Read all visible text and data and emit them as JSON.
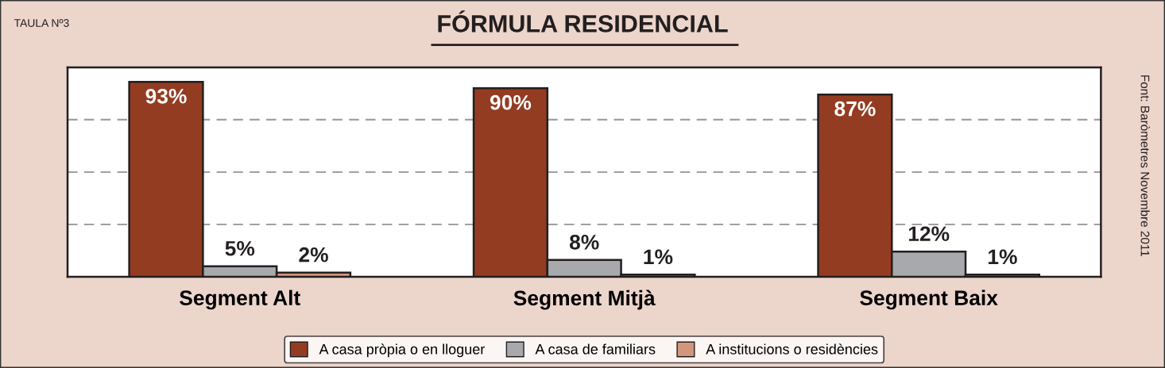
{
  "chart_data": {
    "type": "bar",
    "title": "FÓRMULA RESIDENCIAL",
    "categories": [
      "Segment Alt",
      "Segment Mitjà",
      "Segment Baix"
    ],
    "series": [
      {
        "name": "A casa pròpia o en lloguer",
        "color": "#943c22",
        "values": [
          93,
          90,
          87
        ],
        "value_labels": [
          "93%",
          "90%",
          "87%"
        ]
      },
      {
        "name": "A casa de familiars",
        "color": "#a7a9ac",
        "values": [
          5,
          8,
          12
        ],
        "value_labels": [
          "5%",
          "8%",
          "12%"
        ]
      },
      {
        "name": "A institucions o residències",
        "color": "#d4967a",
        "values": [
          2,
          1,
          1
        ],
        "value_labels": [
          "2%",
          "1%",
          "1%"
        ]
      }
    ],
    "grid": "y",
    "legend": "bottom",
    "tick_labels": "x",
    "annotations": [
      "TAULA Nº3",
      "Font: Baròmetres Novembre 2011"
    ]
  }
}
